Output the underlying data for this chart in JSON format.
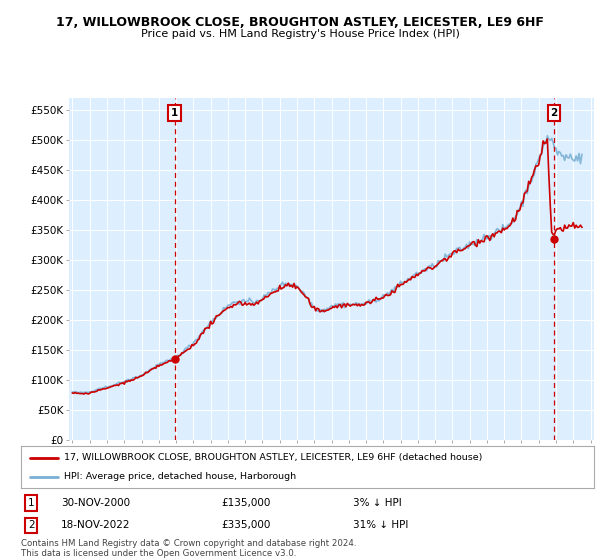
{
  "title": "17, WILLOWBROOK CLOSE, BROUGHTON ASTLEY, LEICESTER, LE9 6HF",
  "subtitle": "Price paid vs. HM Land Registry's House Price Index (HPI)",
  "ylabel_ticks": [
    "£0",
    "£50K",
    "£100K",
    "£150K",
    "£200K",
    "£250K",
    "£300K",
    "£350K",
    "£400K",
    "£450K",
    "£500K",
    "£550K"
  ],
  "ytick_values": [
    0,
    50000,
    100000,
    150000,
    200000,
    250000,
    300000,
    350000,
    400000,
    450000,
    500000,
    550000
  ],
  "ylim": [
    0,
    570000
  ],
  "background_color": "#ffffff",
  "plot_bg_color": "#ddeeff",
  "grid_color": "#ffffff",
  "hpi_color": "#7ab0d4",
  "price_color": "#cc0000",
  "legend_entry1": "17, WILLOWBROOK CLOSE, BROUGHTON ASTLEY, LEICESTER, LE9 6HF (detached house)",
  "legend_entry2": "HPI: Average price, detached house, Harborough",
  "sale1_date": "30-NOV-2000",
  "sale1_price": "£135,000",
  "sale1_hpi": "3% ↓ HPI",
  "sale1_year": 2000.917,
  "sale1_value": 135000,
  "sale2_date": "18-NOV-2022",
  "sale2_price": "£335,000",
  "sale2_hpi": "31% ↓ HPI",
  "sale2_year": 2022.875,
  "sale2_value": 335000,
  "footer": "Contains HM Land Registry data © Crown copyright and database right 2024.\nThis data is licensed under the Open Government Licence v3.0."
}
